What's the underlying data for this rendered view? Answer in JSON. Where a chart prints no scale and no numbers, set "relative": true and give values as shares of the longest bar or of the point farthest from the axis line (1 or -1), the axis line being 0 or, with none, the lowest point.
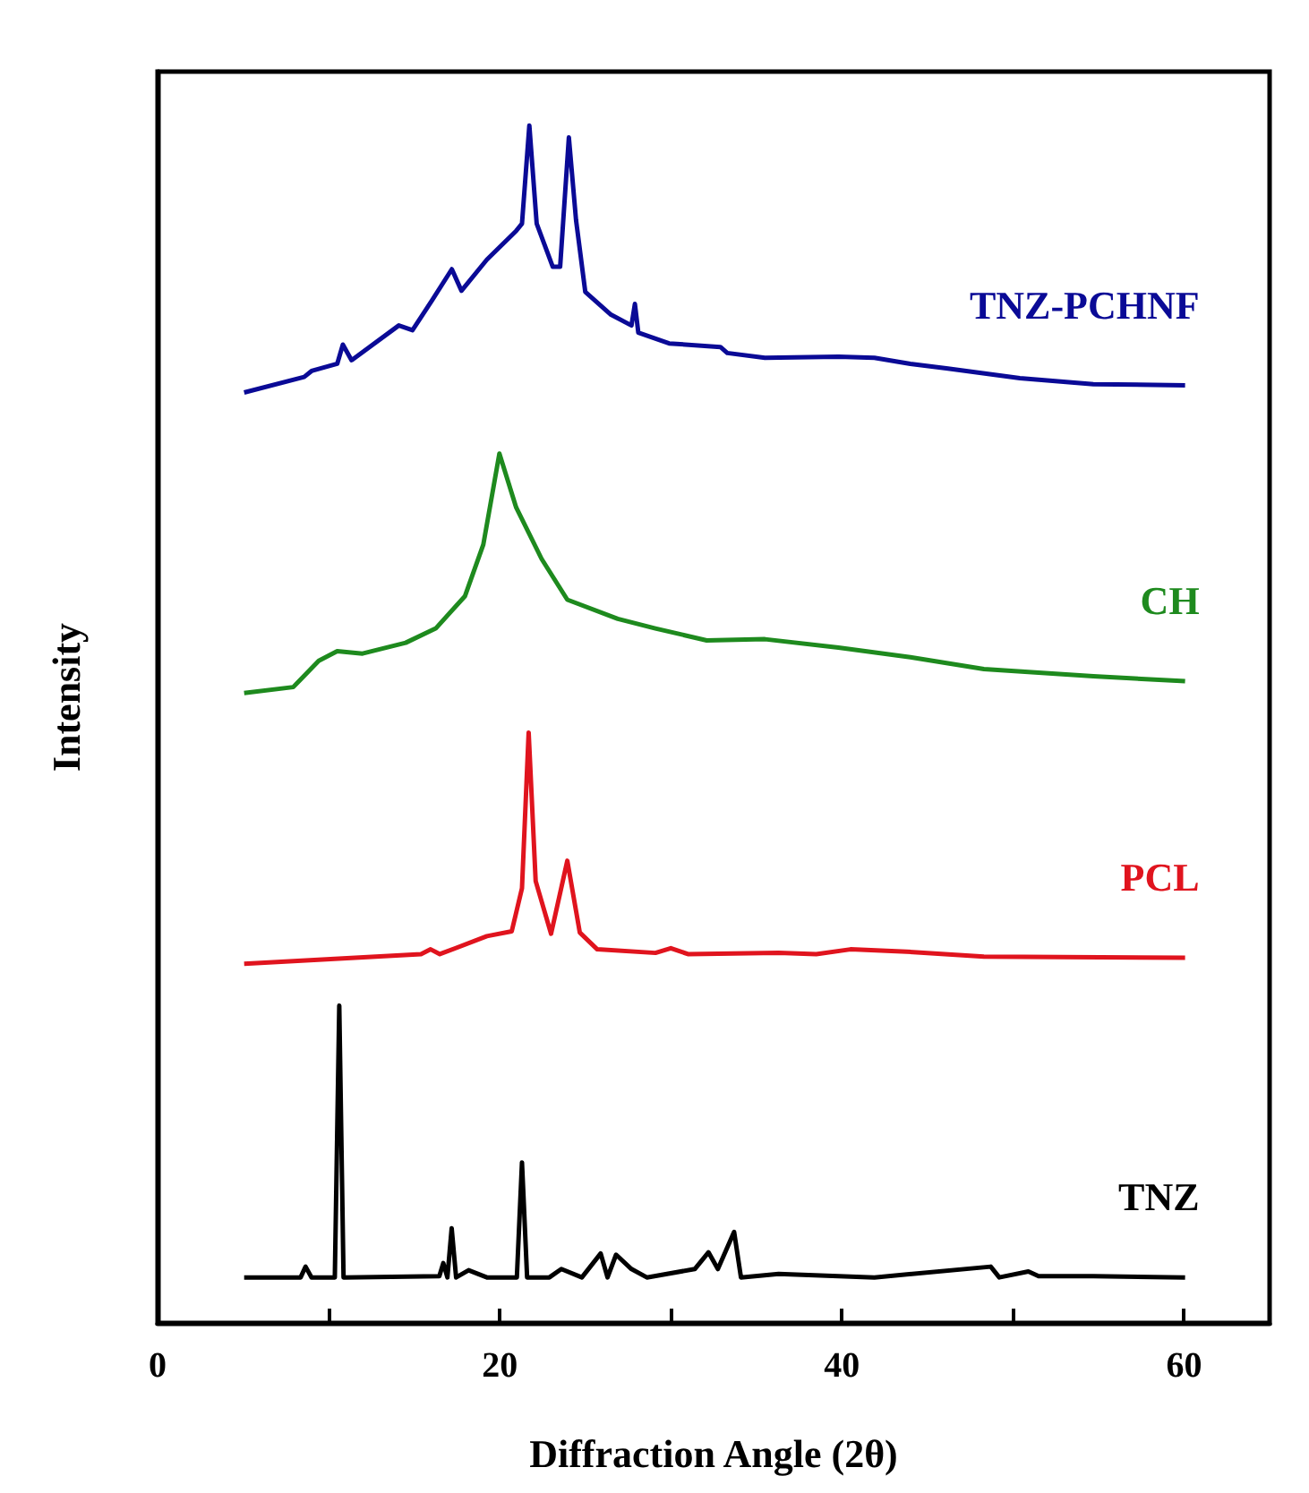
{
  "chart_data": {
    "type": "line",
    "relative": true,
    "xlabel": "Diffraction Angle (2θ)",
    "ylabel": "Intensity",
    "xlim": [
      0,
      65
    ],
    "xticks": [
      0,
      {
        "value": 10,
        "label": null
      },
      20,
      {
        "value": 30,
        "label": null
      },
      40,
      {
        "value": 50,
        "label": null
      },
      60
    ],
    "grid": false,
    "legend": false,
    "marker": "none",
    "line_style": "solid",
    "series": [
      {
        "name": "TNZ-PCHNF",
        "color": "#0a0a96",
        "x": [
          5.06,
          8.57,
          9.0,
          10.5,
          10.83,
          11.34,
          14.1,
          14.9,
          16.04,
          17.2,
          17.76,
          19.25,
          20.96,
          21.3,
          21.73,
          22.16,
          23.1,
          23.53,
          24.04,
          24.46,
          25.0,
          26.5,
          27.7,
          27.9,
          28.1,
          29.9,
          32.9,
          33.3,
          35.5,
          39.8,
          41.9,
          44.0,
          46.2,
          50.4,
          54.7,
          60.06
        ],
        "values": [
          0.777,
          0.79,
          0.795,
          0.801,
          0.817,
          0.804,
          0.833,
          0.829,
          0.854,
          0.88,
          0.862,
          0.888,
          0.912,
          0.918,
          1,
          0.918,
          0.882,
          0.882,
          0.99,
          0.921,
          0.861,
          0.842,
          0.833,
          0.851,
          0.827,
          0.818,
          0.815,
          0.81,
          0.806,
          0.807,
          0.806,
          0.801,
          0.797,
          0.789,
          0.784,
          0.783
        ]
      },
      {
        "name": "CH",
        "color": "#1e8a1e",
        "x": [
          5.06,
          7.93,
          9.42,
          10.5,
          11.98,
          14.5,
          16.26,
          17.97,
          19.04,
          19.98,
          20.96,
          22.45,
          23.95,
          26.9,
          29.1,
          32.1,
          35.5,
          39.8,
          44.0,
          48.3,
          54.7,
          60.06
        ],
        "values": [
          0.526,
          0.531,
          0.553,
          0.561,
          0.559,
          0.568,
          0.58,
          0.607,
          0.65,
          0.726,
          0.681,
          0.638,
          0.604,
          0.588,
          0.58,
          0.57,
          0.571,
          0.564,
          0.556,
          0.546,
          0.54,
          0.536
        ]
      },
      {
        "name": "PCL",
        "color": "#e0141e",
        "x": [
          5.06,
          15.4,
          15.96,
          16.5,
          19.25,
          20.7,
          21.3,
          21.69,
          22.1,
          23.0,
          23.95,
          24.68,
          25.7,
          29.1,
          30.0,
          31.0,
          36.3,
          38.5,
          40.5,
          43.8,
          48.3,
          60.06
        ],
        "values": [
          0.3,
          0.308,
          0.312,
          0.308,
          0.323,
          0.327,
          0.363,
          0.493,
          0.369,
          0.325,
          0.386,
          0.326,
          0.312,
          0.309,
          0.313,
          0.308,
          0.309,
          0.308,
          0.312,
          0.31,
          0.306,
          0.305
        ]
      },
      {
        "name": "TNZ",
        "color": "#000000",
        "x": [
          5.06,
          8.36,
          8.65,
          9.0,
          10.36,
          10.62,
          10.87,
          16.47,
          16.7,
          16.94,
          17.19,
          17.45,
          18.18,
          19.25,
          21.0,
          21.3,
          21.6,
          22.9,
          23.6,
          24.8,
          25.9,
          26.3,
          26.8,
          27.7,
          28.6,
          31.4,
          32.2,
          32.75,
          33.7,
          34.1,
          36.3,
          41.9,
          48.7,
          49.2,
          50.9,
          51.5,
          54.7,
          60.06
        ],
        "values": [
          0.038,
          0.038,
          0.047,
          0.038,
          0.038,
          0.265,
          0.038,
          0.039,
          0.05,
          0.038,
          0.079,
          0.038,
          0.044,
          0.038,
          0.038,
          0.134,
          0.038,
          0.038,
          0.045,
          0.038,
          0.058,
          0.038,
          0.057,
          0.045,
          0.038,
          0.045,
          0.059,
          0.045,
          0.076,
          0.038,
          0.041,
          0.038,
          0.047,
          0.038,
          0.043,
          0.039,
          0.039,
          0.038
        ]
      }
    ]
  }
}
